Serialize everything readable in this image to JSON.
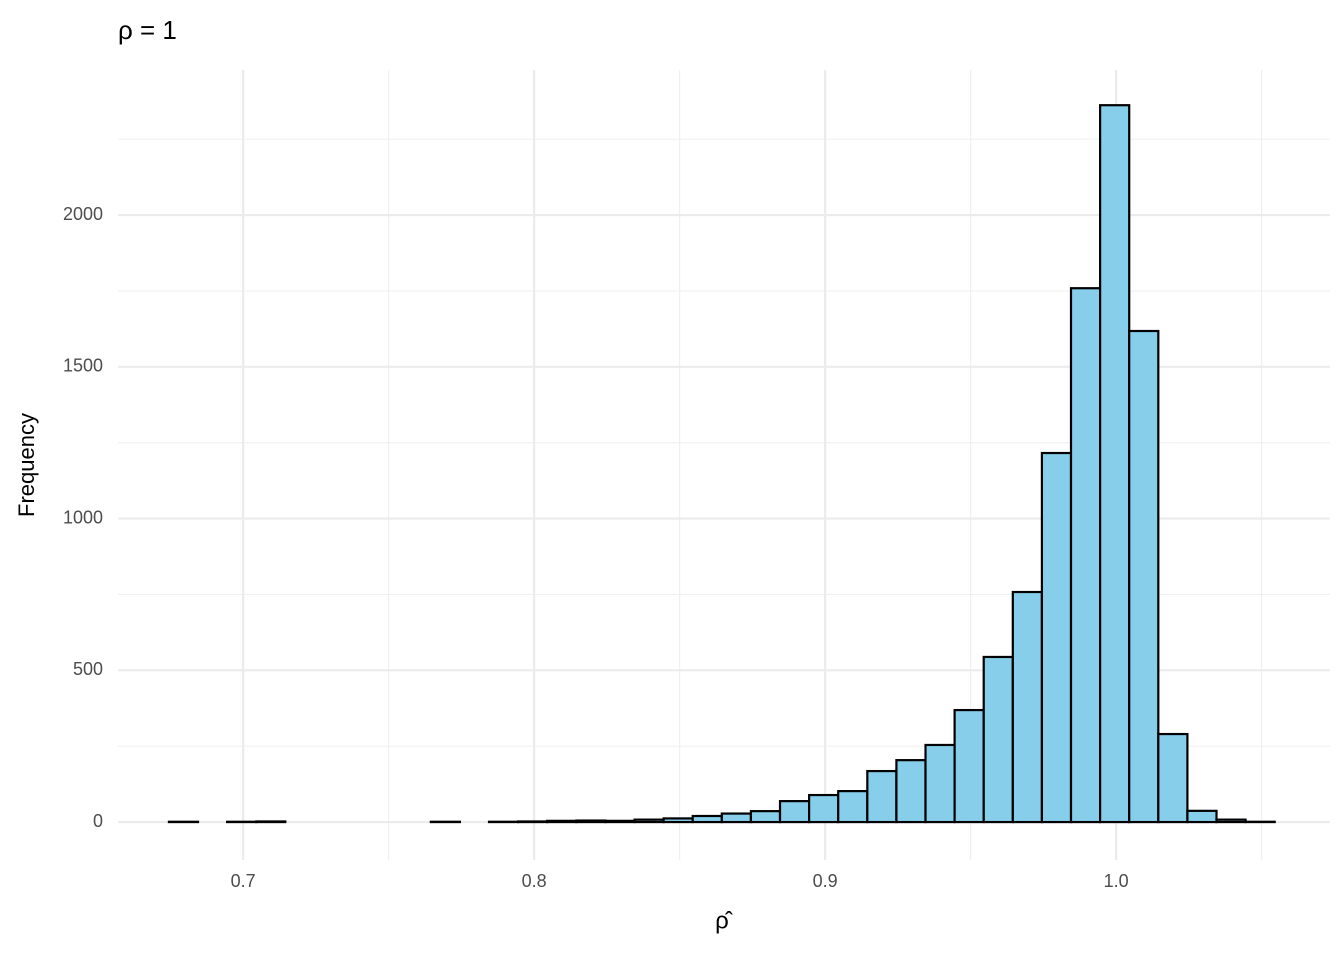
{
  "chart_data": {
    "type": "histogram",
    "title": "ρ = 1",
    "x_label": "ρ̂",
    "y_label": "Frequency",
    "bins": [
      0.6745,
      0.6845,
      0.6945,
      0.7045,
      0.7145,
      0.7245,
      0.7345,
      0.7445,
      0.7545,
      0.7645,
      0.7745,
      0.7845,
      0.7945,
      0.8045,
      0.8145,
      0.8245,
      0.8345,
      0.8445,
      0.8545,
      0.8645,
      0.8745,
      0.8845,
      0.8945,
      0.9045,
      0.9145,
      0.9245,
      0.9345,
      0.9445,
      0.9545,
      0.9645,
      0.9745,
      0.9845,
      0.9945,
      1.0045,
      1.0145,
      1.0245,
      1.0345,
      1.0445,
      1.0545
    ],
    "counts": [
      1,
      0,
      1,
      2,
      0,
      0,
      0,
      0,
      0,
      1,
      0,
      1,
      2,
      4,
      5,
      4,
      8,
      12,
      20,
      28,
      36,
      69,
      89,
      102,
      168,
      204,
      254,
      369,
      544,
      758,
      1216,
      1759,
      2362,
      1618,
      290,
      37,
      8,
      1
    ],
    "color": "#87ceeb",
    "edge_color": "#000000",
    "xlim": [
      0.657,
      1.0735
    ],
    "ylim": [
      -125,
      2478
    ],
    "xticks": [
      {
        "value": 0.7,
        "label": "0.7"
      },
      {
        "value": 0.8,
        "label": "0.8"
      },
      {
        "value": 0.9,
        "label": "0.9"
      },
      {
        "value": 1.0,
        "label": "1.0"
      }
    ],
    "yticks": [
      0,
      500,
      1000,
      1500,
      2000
    ],
    "x_minor_ticks": [
      0.75,
      0.85,
      0.95,
      1.05
    ],
    "y_minor_ticks": [
      250,
      750,
      1250,
      1750,
      2250
    ],
    "grid": true
  }
}
